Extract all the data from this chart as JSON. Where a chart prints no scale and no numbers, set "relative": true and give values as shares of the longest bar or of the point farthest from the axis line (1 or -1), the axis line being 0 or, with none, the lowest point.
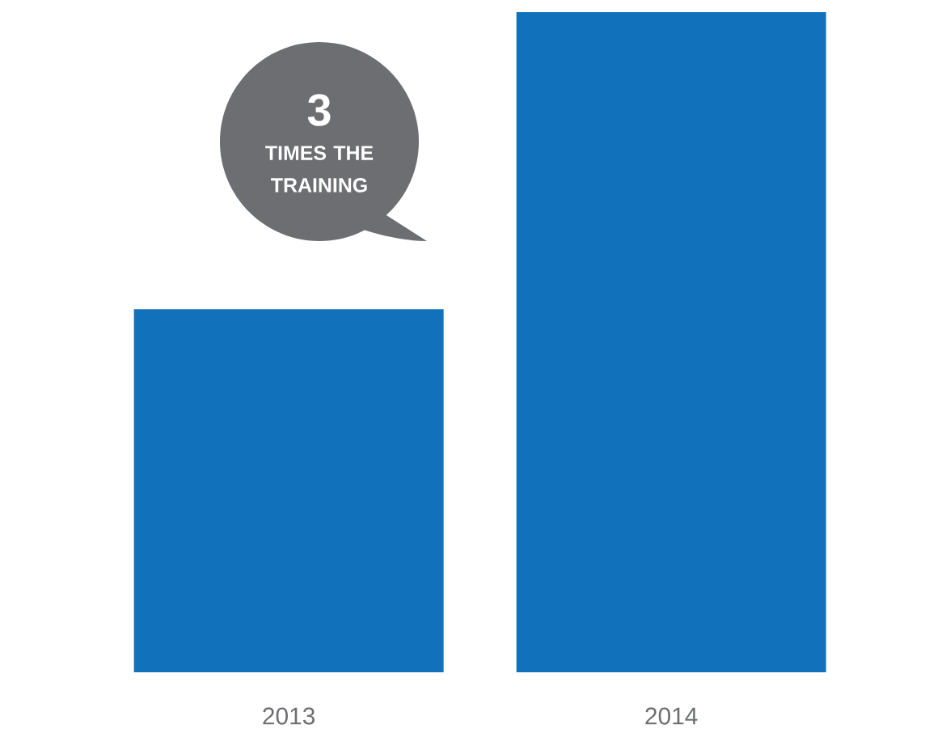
{
  "chart_data": {
    "type": "bar",
    "relative": true,
    "categories": [
      "2013",
      "2014"
    ],
    "values": [
      0.55,
      1
    ],
    "color": "#1172bb",
    "annotations": [
      "3",
      "TIMES THE TRAINING"
    ]
  }
}
